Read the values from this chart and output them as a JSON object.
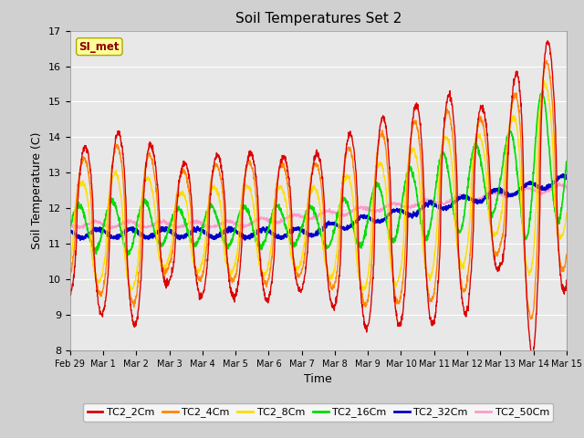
{
  "title": "Soil Temperatures Set 2",
  "xlabel": "Time",
  "ylabel": "Soil Temperature (C)",
  "ylim": [
    8.0,
    17.0
  ],
  "yticks": [
    8.0,
    9.0,
    10.0,
    11.0,
    12.0,
    13.0,
    14.0,
    15.0,
    16.0,
    17.0
  ],
  "annotation_text": "SI_met",
  "annotation_bg": "#ffff99",
  "annotation_border": "#aaa800",
  "lines": {
    "TC2_2Cm": {
      "color": "#dd0000",
      "lw": 1.0
    },
    "TC2_4Cm": {
      "color": "#ff8800",
      "lw": 1.0
    },
    "TC2_8Cm": {
      "color": "#ffdd00",
      "lw": 1.0
    },
    "TC2_16Cm": {
      "color": "#00dd00",
      "lw": 1.2
    },
    "TC2_32Cm": {
      "color": "#0000cc",
      "lw": 1.5
    },
    "TC2_50Cm": {
      "color": "#ff99cc",
      "lw": 1.0
    }
  },
  "fig_facecolor": "#d0d0d0",
  "plot_facecolor": "#e8e8e8",
  "grid_color": "#ffffff",
  "xtick_labels": [
    "Feb 29",
    "Mar 1",
    "Mar 2",
    "Mar 3",
    "Mar 4",
    "Mar 5",
    "Mar 6",
    "Mar 7",
    "Mar 8",
    "Mar 9",
    "Mar 10",
    "Mar 1⁠⁠",
    "Mar 12",
    "Mar 13",
    "Mar 14",
    "Mar 15"
  ],
  "n_points": 2000,
  "start_day": 0,
  "end_day": 15.0
}
